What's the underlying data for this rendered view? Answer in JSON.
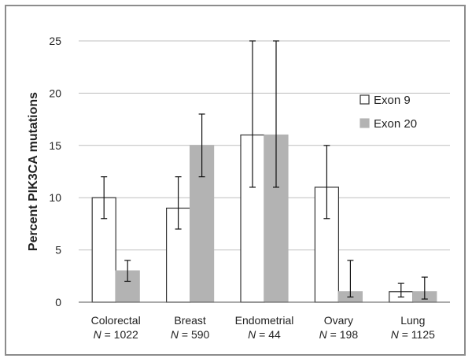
{
  "chart_data": {
    "type": "bar",
    "ylabel": "Percent PIK3CA mutations",
    "ylim": [
      0,
      25
    ],
    "yticks": [
      "0",
      "5",
      "10",
      "15",
      "20",
      "25"
    ],
    "grid": "horizontal",
    "legend_position": "right",
    "categories": [
      {
        "name": "Colorectal",
        "n_prefix": "N",
        "n_value": " = 1022"
      },
      {
        "name": "Breast",
        "n_prefix": "N",
        "n_value": " = 590"
      },
      {
        "name": "Endometrial",
        "n_prefix": "N",
        "n_value": " = 44"
      },
      {
        "name": "Ovary",
        "n_prefix": "N",
        "n_value": " = 198"
      },
      {
        "name": "Lung",
        "n_prefix": "N",
        "n_value": " = 1125"
      }
    ],
    "series": [
      {
        "name": "Exon 9",
        "color": "#ffffff",
        "stroke": "#333333",
        "values": [
          10,
          9,
          16,
          11,
          1
        ],
        "err_low": [
          8,
          7,
          11,
          8,
          0.5
        ],
        "err_high": [
          12,
          12,
          25,
          15,
          1.8
        ]
      },
      {
        "name": "Exon 20",
        "color": "#b3b3b3",
        "stroke": "#b3b3b3",
        "values": [
          3,
          15,
          16,
          1,
          1
        ],
        "err_low": [
          2,
          12,
          11,
          0.5,
          0.3
        ],
        "err_high": [
          4,
          18,
          25,
          4,
          2.4
        ]
      }
    ]
  }
}
